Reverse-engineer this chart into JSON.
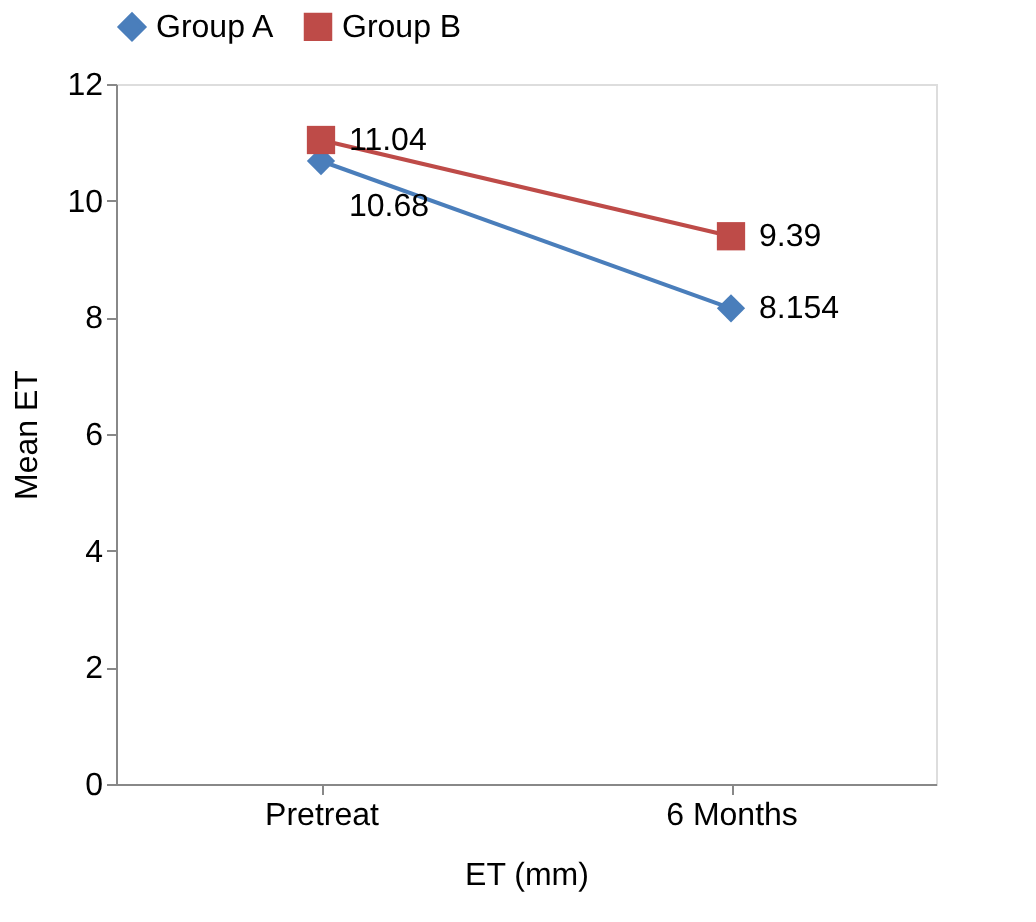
{
  "chart_data": {
    "type": "line",
    "xlabel": "ET (mm)",
    "ylabel": "Mean ET",
    "categories": [
      "Pretreat",
      "6 Months"
    ],
    "series": [
      {
        "name": "Group A",
        "color": "#4a7ebb",
        "marker": "diamond",
        "values": [
          10.68,
          8.154
        ]
      },
      {
        "name": "Group B",
        "color": "#be4b48",
        "marker": "square",
        "values": [
          11.04,
          9.39
        ]
      }
    ],
    "ylim": [
      0,
      12
    ],
    "yticks": [
      0,
      2,
      4,
      6,
      8,
      10,
      12
    ],
    "grid": false,
    "legend": "top",
    "data_labels": true,
    "line_style": "solid"
  }
}
